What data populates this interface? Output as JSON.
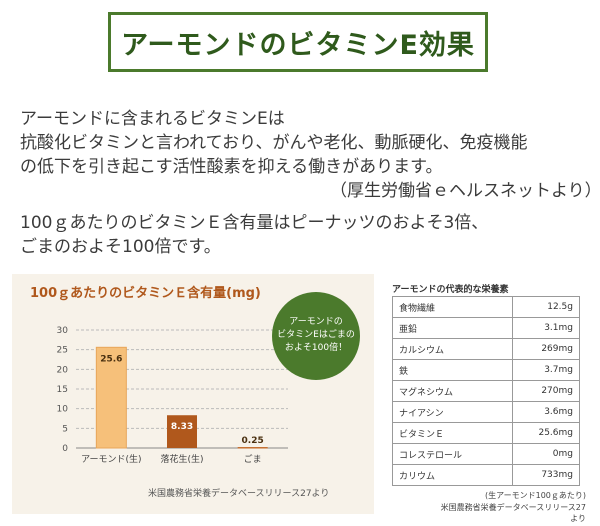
{
  "title": "アーモンドのビタミンE効果",
  "intro": {
    "lines": [
      "アーモンドに含まれるビタミンEは",
      "抗酸化ビタミンと言われており、がんや老化、動脈硬化、免疫機能",
      "の低下を引き起こす活性酸素を抑える働きがあります。",
      "（厚生労働省ｅヘルスネットより）",
      "100ｇあたりのビタミンＥ含有量はピーナッツのおよそ3倍、",
      "ごまのおよそ100倍です。"
    ]
  },
  "chart_data": {
    "type": "bar",
    "title": "100ｇあたりのビタミンＥ含有量(mg)",
    "categories": [
      "アーモンド(生)",
      "落花生(生)",
      "ごま"
    ],
    "values": [
      25.6,
      8.33,
      0.25
    ],
    "value_labels": [
      "25.6",
      "8.33",
      "0.25"
    ],
    "yticks": [
      "0",
      "5",
      "10",
      "15",
      "20",
      "25",
      "30"
    ],
    "ylim": [
      0,
      30
    ],
    "grid": true,
    "colors": [
      "#f6c07a",
      "#b0581c",
      "#c56f30"
    ],
    "callout": [
      "アーモンドの",
      "ビタミンEはごまの",
      "およそ100倍！"
    ],
    "callout_color": "#4b7a2c",
    "source": "米国農務省栄養データベースリリース27より"
  },
  "nutrition": {
    "title": "アーモンドの代表的な栄養素",
    "rows": [
      {
        "name": "食物繊維",
        "value": "12.5g"
      },
      {
        "name": "亜鉛",
        "value": "3.1mg"
      },
      {
        "name": "カルシウム",
        "value": "269mg"
      },
      {
        "name": "鉄",
        "value": "3.7mg"
      },
      {
        "name": "マグネシウム",
        "value": "270mg"
      },
      {
        "name": "ナイアシン",
        "value": "3.6mg"
      },
      {
        "name": "ビタミンＥ",
        "value": "25.6mg"
      },
      {
        "name": "コレステロール",
        "value": "0mg"
      },
      {
        "name": "カリウム",
        "value": "733mg"
      }
    ],
    "note1": "(生アーモンド100ｇあたり)",
    "note2": "米国農務省栄養データベースリリース27より"
  }
}
